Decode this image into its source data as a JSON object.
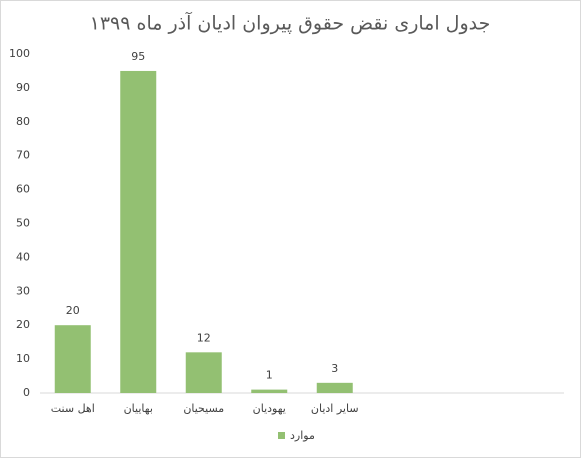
{
  "chart_data": {
    "type": "bar",
    "title": "جدول اماری نقض حقوق پیروان ادیان آذر ماه ۱۳۹۹",
    "categories": [
      "اهل سنت",
      "بهاییان",
      "مسیحیان",
      "یهودیان",
      "سایر ادیان",
      null,
      null,
      null
    ],
    "series": [
      {
        "name": "موارد",
        "color": "#93c072",
        "values": [
          20,
          95,
          12,
          1,
          3,
          null,
          null,
          null
        ]
      }
    ],
    "ylim": [
      0,
      100
    ],
    "yticks": [
      0,
      10,
      20,
      30,
      40,
      50,
      60,
      70,
      80,
      90,
      100
    ],
    "grid": false,
    "legend": "bottom"
  }
}
